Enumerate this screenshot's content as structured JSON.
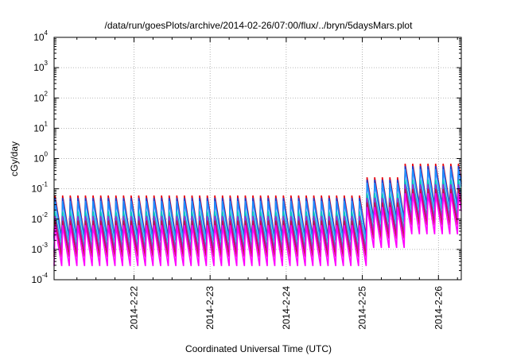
{
  "chart_data": {
    "type": "line",
    "title": "/data/run/goesPlots/archive/2014-02-26/07:00/flux/../bryn/5daysMars.plot",
    "xlabel": "Coordinated Universal Time (UTC)",
    "ylabel": "cGy/day",
    "yscale": "log",
    "ylim_exponent": [
      -4,
      4
    ],
    "ytick_labels": [
      {
        "base": "10",
        "exp": "-4"
      },
      {
        "base": "10",
        "exp": "-3"
      },
      {
        "base": "10",
        "exp": "-2"
      },
      {
        "base": "10",
        "exp": "-1"
      },
      {
        "base": "10",
        "exp": "0"
      },
      {
        "base": "10",
        "exp": "1"
      },
      {
        "base": "10",
        "exp": "2"
      },
      {
        "base": "10",
        "exp": "3"
      },
      {
        "base": "10",
        "exp": "4"
      }
    ],
    "xlim_days": [
      -0.05,
      5.3
    ],
    "xtick_days": [
      1,
      2,
      3,
      4,
      5
    ],
    "xtick_labels": [
      "2014-2-22",
      "2014-2-23",
      "2014-2-24",
      "2014-2-25",
      "2014-2-26"
    ],
    "note": "x in days since 2014-02-21 00:00 UTC; values are log10 of dose rate (cGy/day), periodic sawtooth",
    "sawtooth": {
      "period_days": 0.1,
      "rise_fraction": 0.12,
      "step1_day": 4.05,
      "step2_day": 4.55,
      "step1_log_increase": 0.6,
      "step2_log_increase": 0.45,
      "end_day": 5.3
    },
    "series": [
      {
        "name": "red",
        "color": "#e8000b",
        "peak_log": -1.22,
        "trough_log": -2.6
      },
      {
        "name": "dark-blue",
        "color": "#1e3fd0",
        "peak_log": -1.3,
        "trough_log": -2.65
      },
      {
        "name": "light-blue",
        "color": "#1f8fff",
        "peak_log": -1.4,
        "trough_log": -2.72
      },
      {
        "name": "cyan",
        "color": "#00c8c0",
        "peak_log": -1.75,
        "trough_log": -3.0
      },
      {
        "name": "purple",
        "color": "#9a2ecf",
        "peak_log": -1.9,
        "trough_log": -3.1
      },
      {
        "name": "crimson",
        "color": "#c8104a",
        "peak_log": -2.05,
        "trough_log": -3.25
      },
      {
        "name": "magenta",
        "color": "#ff00ff",
        "peak_log": -2.2,
        "trough_log": -3.55
      }
    ]
  }
}
